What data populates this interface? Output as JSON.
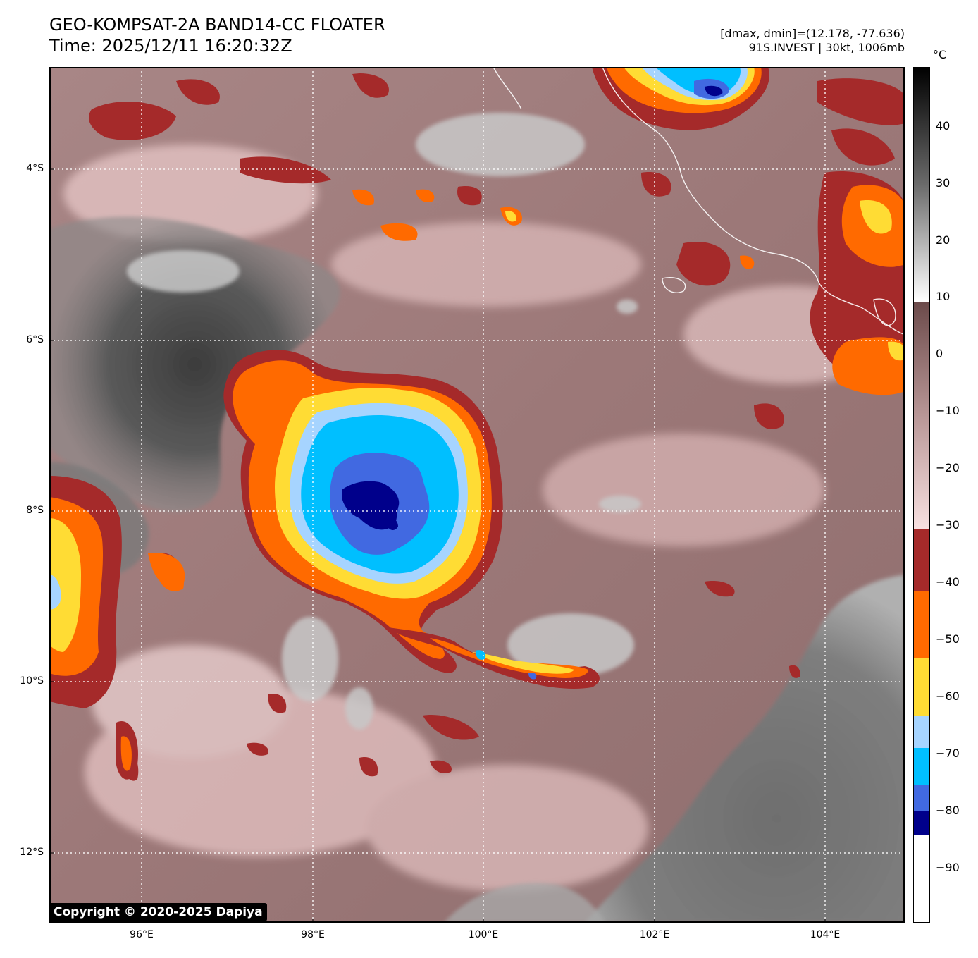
{
  "header": {
    "title_line1": "GEO-KOMPSAT-2A BAND14-CC FLOATER",
    "title_line2": "Time: 2025/12/11 16:20:32Z",
    "info_line1": "[dmax, dmin]=(12.178, -77.636)",
    "info_line2": "91S.INVEST | 30kt, 1006mb"
  },
  "colorbar": {
    "unit": "°C",
    "ticks": [
      "40",
      "30",
      "20",
      "10",
      "0",
      "−10",
      "−20",
      "−30",
      "−40",
      "−50",
      "−60",
      "−70",
      "−80",
      "−90"
    ],
    "colors": {
      "red": "#a52a2a",
      "orange": "#ff6a00",
      "yellow": "#ffdc34",
      "light_blue": "#a6d4ff",
      "sky": "#00bfff",
      "royal": "#4169e1",
      "navy": "#00008b",
      "mauve": "#8b5a5a",
      "pink": "#f0d2d2"
    }
  },
  "axes": {
    "lat_labels": [
      "4°S",
      "6°S",
      "8°S",
      "10°S",
      "12°S"
    ],
    "lon_labels": [
      "96°E",
      "98°E",
      "100°E",
      "102°E",
      "104°E"
    ]
  },
  "copyright": "Copyright © 2020-2025 Dapiya"
}
